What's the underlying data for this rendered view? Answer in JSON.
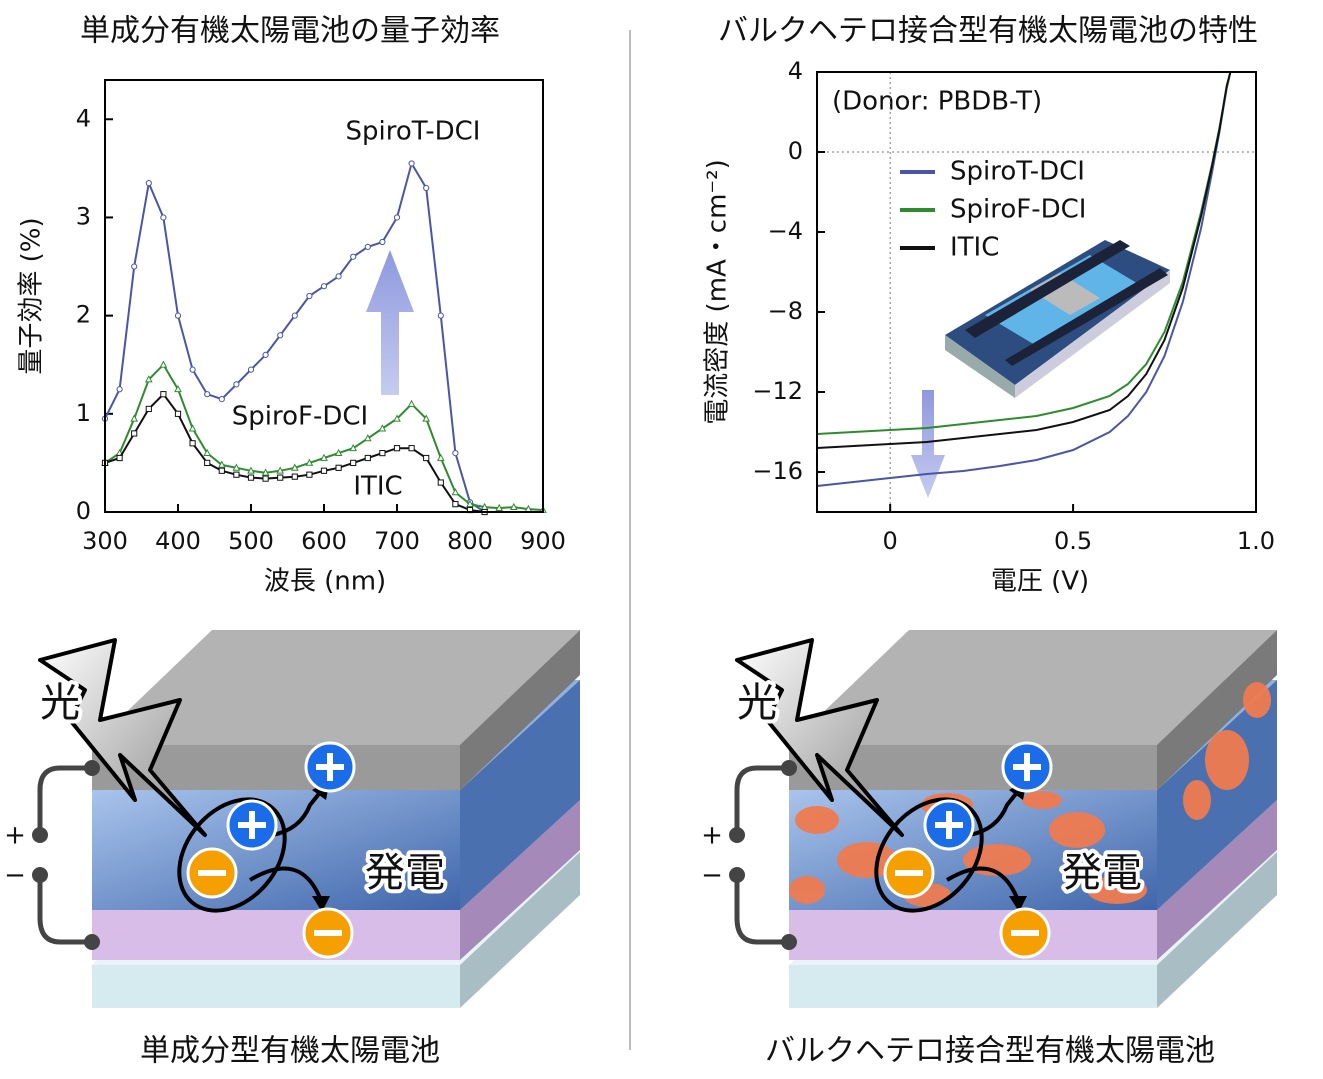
{
  "chart_data": [
    {
      "type": "line",
      "title": "単成分有機太陽電池の量子効率",
      "xlabel": "波長 (nm)",
      "ylabel": "量子効率 (%)",
      "xlim": [
        300,
        900
      ],
      "xticks": [
        300,
        400,
        500,
        600,
        700,
        800,
        900
      ],
      "ylim": [
        0,
        4.4
      ],
      "yticks": [
        0,
        1,
        2,
        3,
        4
      ],
      "x": [
        300,
        320,
        340,
        360,
        380,
        400,
        420,
        440,
        460,
        480,
        500,
        520,
        540,
        560,
        580,
        600,
        620,
        640,
        660,
        680,
        700,
        720,
        740,
        760,
        780,
        800,
        820,
        840,
        860,
        880,
        900
      ],
      "series": [
        {
          "name": "SpiroT-DCI",
          "color": "#4a55a8",
          "marker": "circle",
          "values": [
            0.95,
            1.25,
            2.5,
            3.35,
            3.0,
            2.0,
            1.45,
            1.2,
            1.15,
            1.3,
            1.45,
            1.6,
            1.8,
            2.0,
            2.2,
            2.3,
            2.4,
            2.6,
            2.7,
            2.75,
            3.0,
            3.55,
            3.3,
            2.0,
            0.6,
            0.1,
            0.0,
            null,
            null,
            null,
            null
          ]
        },
        {
          "name": "SpiroF-DCI",
          "color": "#2e8b2e",
          "marker": "triangle",
          "values": [
            0.5,
            0.6,
            0.95,
            1.35,
            1.5,
            1.25,
            0.85,
            0.6,
            0.48,
            0.45,
            0.42,
            0.4,
            0.42,
            0.45,
            0.5,
            0.55,
            0.6,
            0.65,
            0.75,
            0.85,
            0.95,
            1.1,
            0.95,
            0.55,
            0.2,
            0.08,
            0.05,
            0.04,
            0.05,
            0.03,
            0.02
          ]
        },
        {
          "name": "ITIC",
          "color": "#111111",
          "marker": "square",
          "values": [
            0.5,
            0.55,
            0.8,
            1.05,
            1.2,
            1.0,
            0.7,
            0.5,
            0.42,
            0.38,
            0.35,
            0.34,
            0.35,
            0.36,
            0.38,
            0.42,
            0.45,
            0.5,
            0.55,
            0.6,
            0.65,
            0.65,
            0.55,
            0.3,
            0.08,
            0.02,
            0.0,
            null,
            null,
            null,
            null
          ]
        }
      ],
      "legend": false
    },
    {
      "type": "line",
      "title": "バルクヘテロ接合型有機太陽電池の特性",
      "xlabel": "電圧 (V)",
      "ylabel": "電流密度 (mA・cm⁻²)",
      "annotations": [
        "(Donor: PBDB-T)"
      ],
      "xlim": [
        -0.2,
        1.0
      ],
      "xticks": [
        0,
        0.5,
        {
          "value": 1,
          "label": "1.0"
        }
      ],
      "ylim": [
        -18,
        4
      ],
      "yticks": [
        4,
        0,
        {
          "value": -4,
          "label": "−4"
        },
        {
          "value": -8,
          "label": "−8"
        },
        {
          "value": -12,
          "label": "−12"
        },
        {
          "value": -16,
          "label": "−16"
        }
      ],
      "x": [
        -0.2,
        -0.1,
        0,
        0.1,
        0.2,
        0.3,
        0.4,
        0.5,
        0.6,
        0.65,
        0.7,
        0.75,
        0.8,
        0.85,
        0.88,
        0.9,
        0.92,
        0.93
      ],
      "series": [
        {
          "name": "SpiroT-DCI",
          "color": "#4a55a8",
          "values": [
            -16.7,
            -16.5,
            -16.3,
            -16.1,
            -15.95,
            -15.7,
            -15.4,
            -14.9,
            -14.0,
            -13.2,
            -12.0,
            -10.2,
            -7.5,
            -3.8,
            -1.0,
            1.0,
            3.2,
            4.0
          ]
        },
        {
          "name": "SpiroF-DCI",
          "color": "#2e8b2e",
          "values": [
            -14.1,
            -14.0,
            -13.9,
            -13.8,
            -13.6,
            -13.4,
            -13.2,
            -12.8,
            -12.2,
            -11.6,
            -10.6,
            -9.0,
            -6.5,
            -3.0,
            -0.6,
            1.2,
            3.2,
            4.0
          ]
        },
        {
          "name": "ITIC",
          "color": "#111111",
          "values": [
            -14.8,
            -14.7,
            -14.6,
            -14.5,
            -14.3,
            -14.1,
            -13.9,
            -13.5,
            -12.9,
            -12.2,
            -11.1,
            -9.4,
            -6.8,
            -3.2,
            -0.7,
            1.1,
            3.3,
            4.0
          ]
        }
      ],
      "legend": "upper left"
    }
  ],
  "diagrams": [
    {
      "light": "光",
      "plus": "+",
      "minus": "−",
      "label": "発電",
      "caption": "単成分型有機太陽電池"
    },
    {
      "light": "光",
      "plus": "+",
      "minus": "−",
      "label": "発電",
      "caption": "バルクヘテロ接合型有機太陽電池"
    }
  ]
}
